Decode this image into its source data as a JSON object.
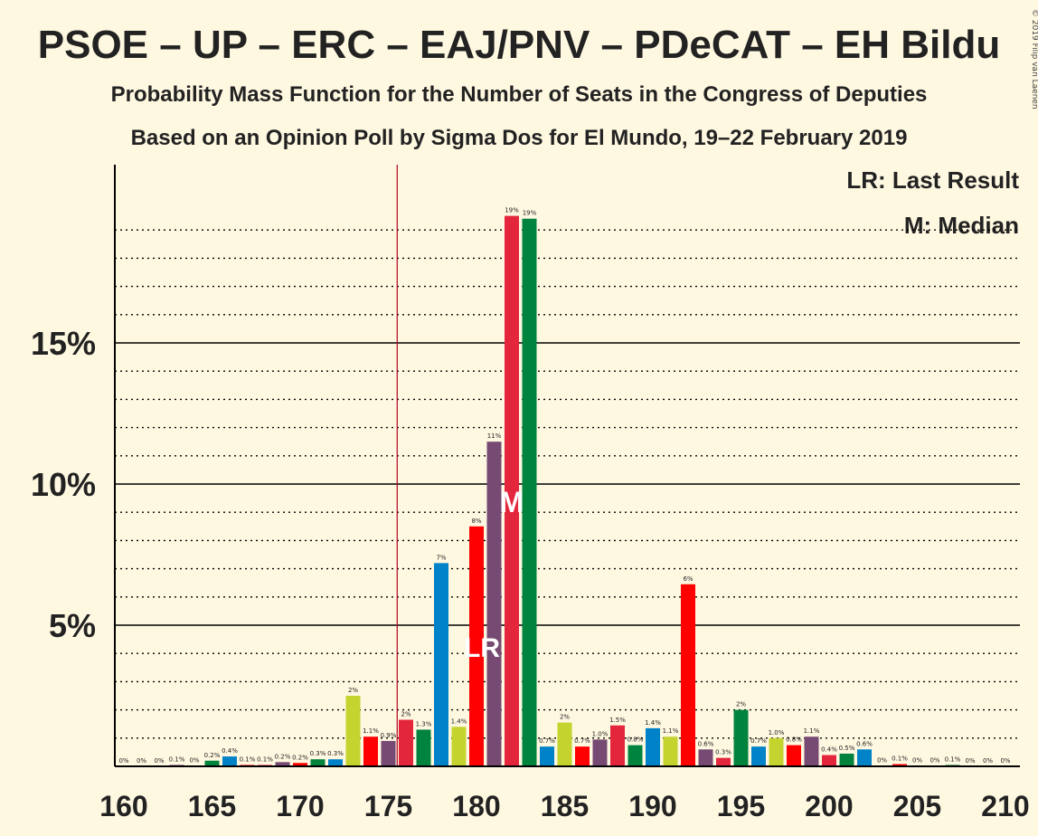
{
  "chart_data": {
    "type": "bar",
    "title": "PSOE – UP – ERC – EAJ/PNV – PDeCAT – EH Bildu",
    "subtitle1": "Probability Mass Function for the Number of Seats in the Congress of Deputies",
    "subtitle2": "Based on an Opinion Poll by Sigma Dos for El Mundo, 19–22 February 2019",
    "copyright": "© 2019 Filip van Laenen",
    "legend_lr": "LR: Last Result",
    "legend_m": "M: Median",
    "lr_marker": "LR",
    "median_marker": "M",
    "last_result_seat": 176,
    "median_seat": 182,
    "xlim": [
      160,
      210
    ],
    "ylim": [
      0,
      21
    ],
    "y_ticks": [
      {
        "value": 5,
        "label": "5%"
      },
      {
        "value": 10,
        "label": "10%"
      },
      {
        "value": 15,
        "label": "15%"
      }
    ],
    "x_ticks": [
      160,
      165,
      170,
      175,
      180,
      185,
      190,
      195,
      200,
      205,
      210
    ],
    "colors": {
      "psoe": "#e4263d",
      "up": "#764a73",
      "erc": "#c5d32f",
      "pnv": "#00833c",
      "pdecat": "#0082c8",
      "bildu": "#ff0000",
      "axis": "#000000",
      "grid": "#000000",
      "lr_line": "#b00020"
    },
    "bars": [
      {
        "seat": 160,
        "value": 0,
        "label": "0%",
        "color": "pnv"
      },
      {
        "seat": 161,
        "value": 0,
        "label": "0%",
        "color": "pdecat"
      },
      {
        "seat": 162,
        "value": 0,
        "label": "0%",
        "color": "bildu"
      },
      {
        "seat": 163,
        "value": 0.05,
        "label": "0.1%",
        "color": "up"
      },
      {
        "seat": 164,
        "value": 0.02,
        "label": "0%",
        "color": "erc"
      },
      {
        "seat": 165,
        "value": 0.2,
        "label": "0.2%",
        "color": "pnv"
      },
      {
        "seat": 166,
        "value": 0.35,
        "label": "0.4%",
        "color": "pdecat"
      },
      {
        "seat": 167,
        "value": 0.05,
        "label": "0.1%",
        "color": "bildu"
      },
      {
        "seat": 168,
        "value": 0.05,
        "label": "0.1%",
        "color": "psoe"
      },
      {
        "seat": 169,
        "value": 0.15,
        "label": "0.2%",
        "color": "up"
      },
      {
        "seat": 170,
        "value": 0.12,
        "label": "0.2%",
        "color": "bildu"
      },
      {
        "seat": 171,
        "value": 0.25,
        "label": "0.3%",
        "color": "pnv"
      },
      {
        "seat": 172,
        "value": 0.25,
        "label": "0.3%",
        "color": "pdecat"
      },
      {
        "seat": 173,
        "value": 2.5,
        "label": "2%",
        "color": "erc"
      },
      {
        "seat": 174,
        "value": 1.05,
        "label": "1.1%",
        "color": "bildu"
      },
      {
        "seat": 175,
        "value": 0.9,
        "label": "0.9%",
        "color": "up"
      },
      {
        "seat": 176,
        "value": 1.65,
        "label": "2%",
        "color": "psoe"
      },
      {
        "seat": 177,
        "value": 1.3,
        "label": "1.3%",
        "color": "pnv"
      },
      {
        "seat": 178,
        "value": 7.2,
        "label": "7%",
        "color": "pdecat"
      },
      {
        "seat": 179,
        "value": 1.4,
        "label": "1.4%",
        "color": "erc"
      },
      {
        "seat": 180,
        "value": 8.5,
        "label": "8%",
        "color": "bildu"
      },
      {
        "seat": 181,
        "value": 11.5,
        "label": "11%",
        "color": "up"
      },
      {
        "seat": 182,
        "value": 19.5,
        "label": "19%",
        "color": "psoe"
      },
      {
        "seat": 183,
        "value": 19.4,
        "label": "19%",
        "color": "pnv"
      },
      {
        "seat": 184,
        "value": 0.7,
        "label": "0.7%",
        "color": "pdecat"
      },
      {
        "seat": 185,
        "value": 1.55,
        "label": "2%",
        "color": "erc"
      },
      {
        "seat": 186,
        "value": 0.7,
        "label": "0.7%",
        "color": "bildu"
      },
      {
        "seat": 187,
        "value": 0.95,
        "label": "1.0%",
        "color": "up"
      },
      {
        "seat": 188,
        "value": 1.45,
        "label": "1.5%",
        "color": "psoe"
      },
      {
        "seat": 189,
        "value": 0.75,
        "label": "0.8%",
        "color": "pnv"
      },
      {
        "seat": 190,
        "value": 1.35,
        "label": "1.4%",
        "color": "pdecat"
      },
      {
        "seat": 191,
        "value": 1.05,
        "label": "1.1%",
        "color": "erc"
      },
      {
        "seat": 192,
        "value": 6.45,
        "label": "6%",
        "color": "bildu"
      },
      {
        "seat": 193,
        "value": 0.6,
        "label": "0.6%",
        "color": "up"
      },
      {
        "seat": 194,
        "value": 0.3,
        "label": "0.3%",
        "color": "psoe"
      },
      {
        "seat": 195,
        "value": 2.0,
        "label": "2%",
        "color": "pnv"
      },
      {
        "seat": 196,
        "value": 0.7,
        "label": "0.7%",
        "color": "pdecat"
      },
      {
        "seat": 197,
        "value": 1.0,
        "label": "1.0%",
        "color": "erc"
      },
      {
        "seat": 198,
        "value": 0.75,
        "label": "0.8%",
        "color": "bildu"
      },
      {
        "seat": 199,
        "value": 1.05,
        "label": "1.1%",
        "color": "up"
      },
      {
        "seat": 200,
        "value": 0.4,
        "label": "0.4%",
        "color": "psoe"
      },
      {
        "seat": 201,
        "value": 0.45,
        "label": "0.5%",
        "color": "pnv"
      },
      {
        "seat": 202,
        "value": 0.6,
        "label": "0.6%",
        "color": "pdecat"
      },
      {
        "seat": 203,
        "value": 0.02,
        "label": "0%",
        "color": "erc"
      },
      {
        "seat": 204,
        "value": 0.08,
        "label": "0.1%",
        "color": "bildu"
      },
      {
        "seat": 205,
        "value": 0.02,
        "label": "0%",
        "color": "up"
      },
      {
        "seat": 206,
        "value": 0.02,
        "label": "0%",
        "color": "psoe"
      },
      {
        "seat": 207,
        "value": 0.05,
        "label": "0.1%",
        "color": "pnv"
      },
      {
        "seat": 208,
        "value": 0,
        "label": "0%",
        "color": "pdecat"
      },
      {
        "seat": 209,
        "value": 0,
        "label": "0%",
        "color": "erc"
      },
      {
        "seat": 210,
        "value": 0,
        "label": "0%",
        "color": "bildu"
      }
    ]
  }
}
